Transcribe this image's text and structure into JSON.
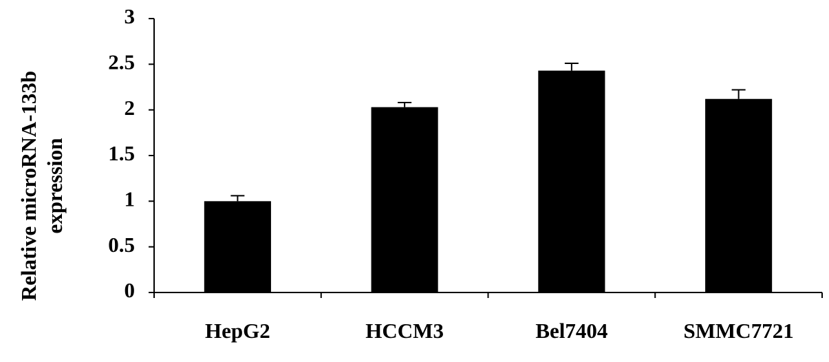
{
  "chart_data": {
    "type": "bar",
    "ylabel": [
      "Relative microRNA-133b",
      "expression"
    ],
    "categories": [
      "HepG2",
      "HCCM3",
      "Bel7404",
      "SMMC7721"
    ],
    "values": [
      1.0,
      2.03,
      2.43,
      2.12
    ],
    "errors": [
      0.06,
      0.05,
      0.08,
      0.1
    ],
    "color": "#000000",
    "ylim": [
      0,
      3
    ],
    "yticks": [
      0,
      0.5,
      1,
      1.5,
      2,
      2.5,
      3
    ],
    "grid": false
  }
}
